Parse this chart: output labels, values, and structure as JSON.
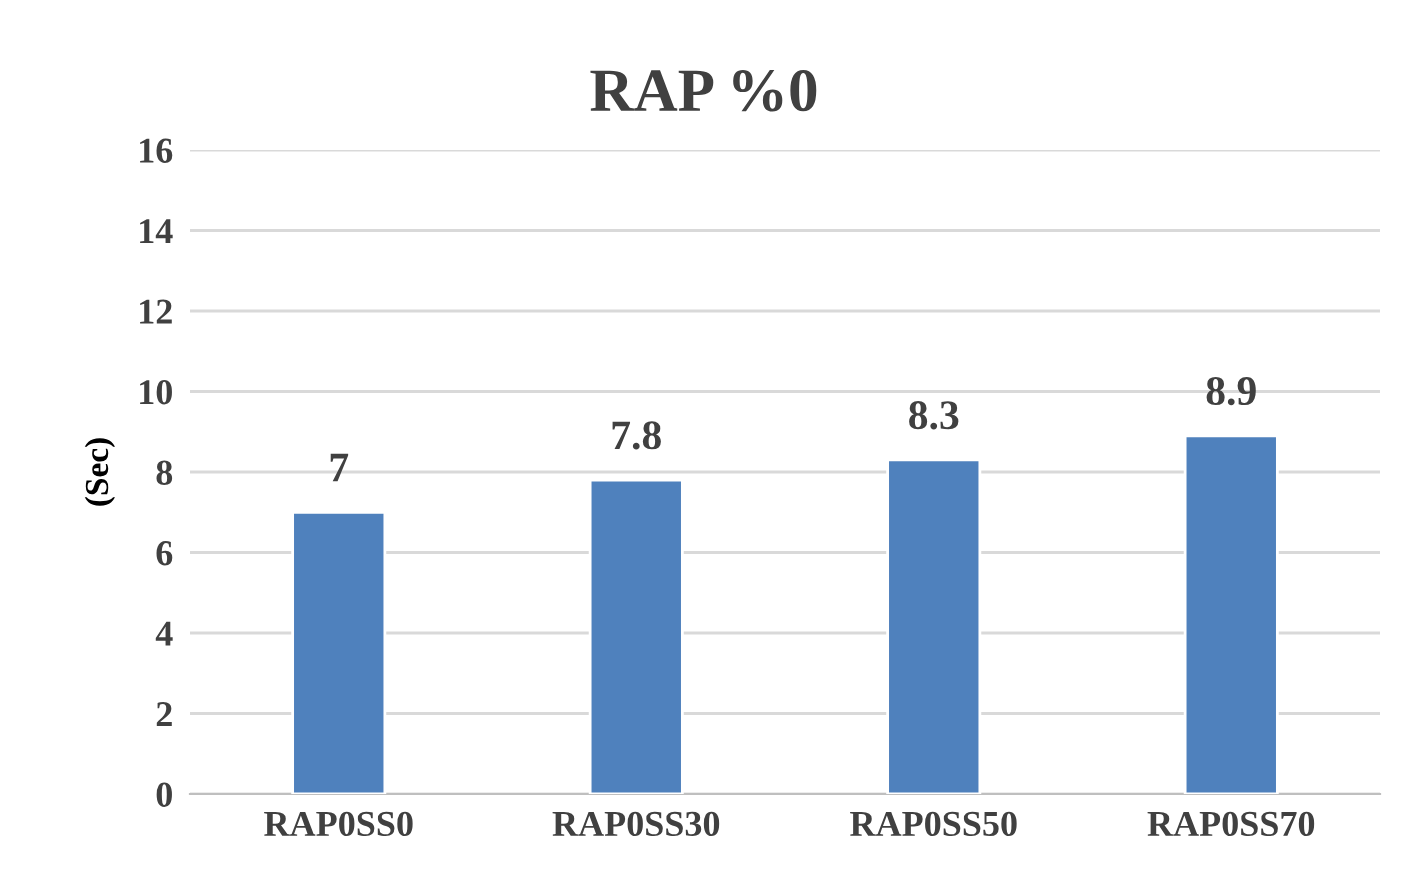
{
  "chart_data": {
    "type": "bar",
    "title": "RAP %0",
    "ylabel": "(Sec)",
    "categories": [
      "RAP0SS0",
      "RAP0SS30",
      "RAP0SS50",
      "RAP0SS70"
    ],
    "values": [
      7,
      7.8,
      8.3,
      8.9
    ],
    "color": "#4f81bd",
    "ylim": [
      0,
      16
    ],
    "yticks": [
      0,
      2,
      4,
      6,
      8,
      10,
      12,
      14,
      16
    ],
    "grid": "y",
    "data_labels": true
  }
}
